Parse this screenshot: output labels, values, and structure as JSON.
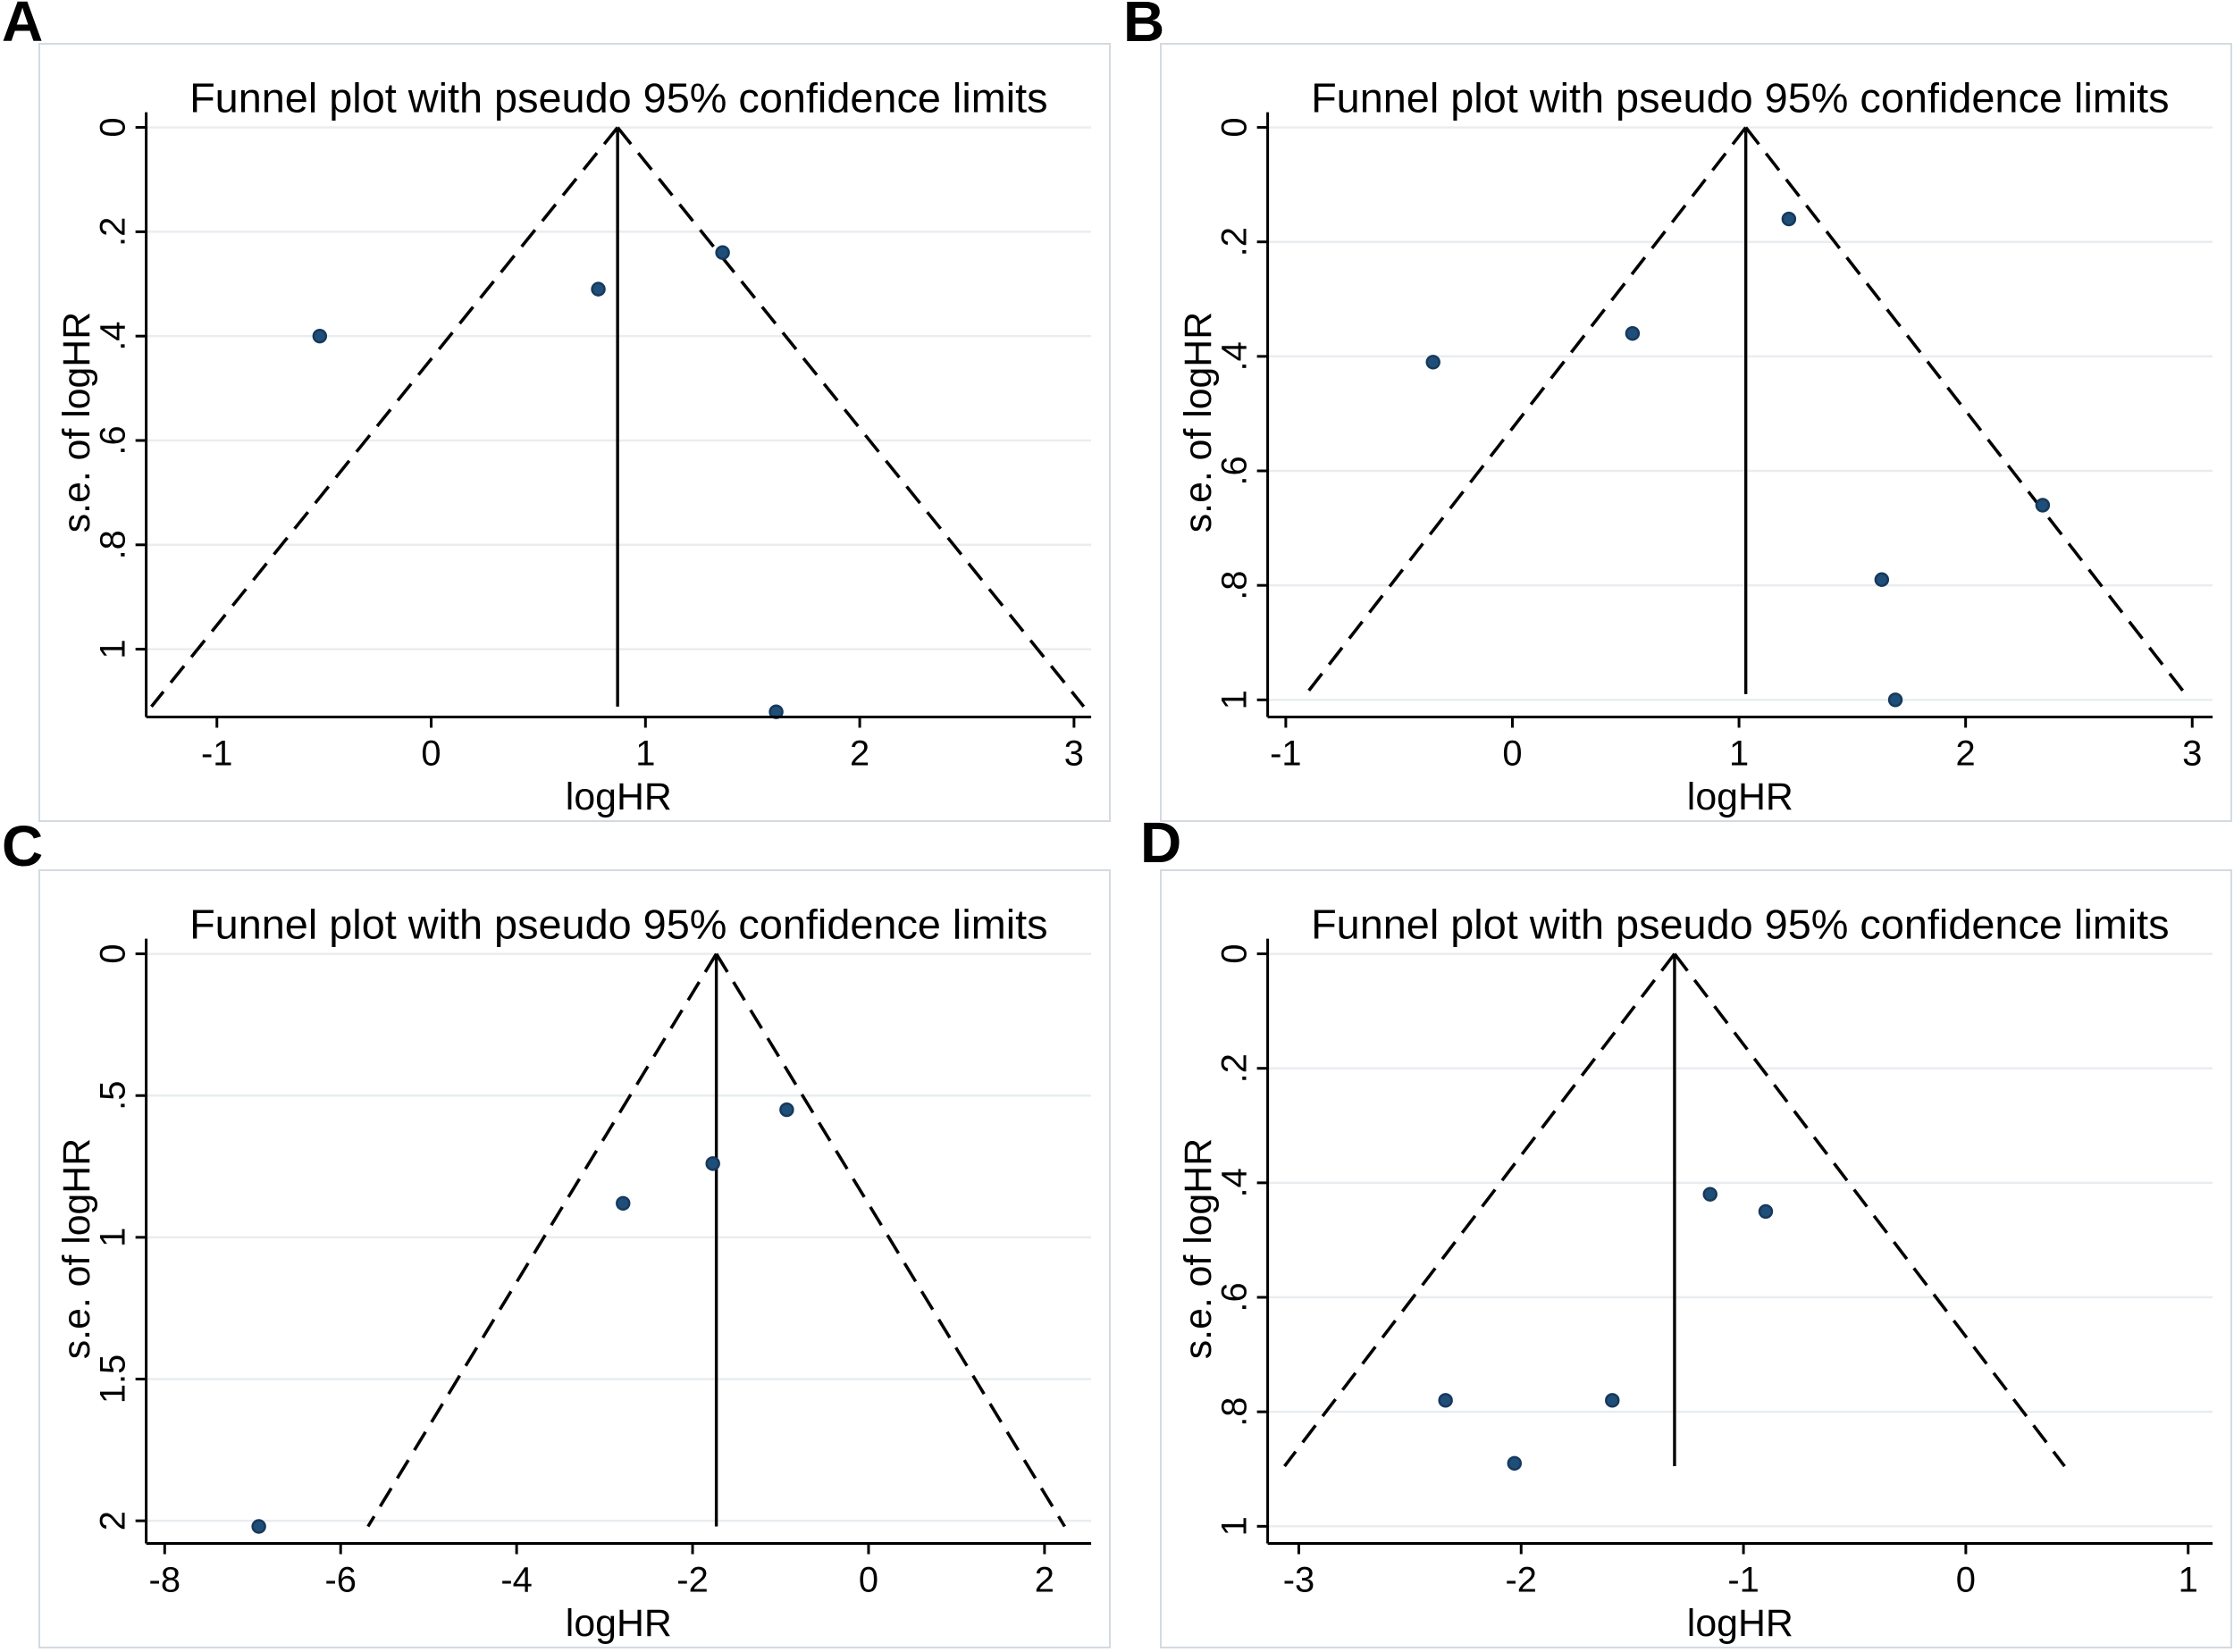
{
  "style": {
    "point_fill": "#1f4e79",
    "point_stroke": "#16395c",
    "grid_color": "#e9edf0",
    "axis_color": "#000000",
    "text_color": "#000000",
    "card_border": "#d3dae1",
    "background": "#ffffff"
  },
  "chart_data": [
    {
      "type": "scatter",
      "subtype": "funnel-plot",
      "panel_label": "A",
      "title": "Funnel plot with pseudo 95% confidence limits",
      "xlabel": "logHR",
      "ylabel": "s.e. of logHR",
      "x_ticks": [
        -1,
        0,
        1,
        2,
        3
      ],
      "x_tick_labels": [
        "-1",
        "0",
        "1",
        "2",
        "3"
      ],
      "y_ticks": [
        0,
        0.2,
        0.4,
        0.6,
        0.8,
        1
      ],
      "y_tick_labels": [
        "0",
        ".2",
        ".4",
        ".6",
        ".8",
        "1"
      ],
      "x_domain": [
        -1.33,
        3.08
      ],
      "y_domain": [
        0,
        1.13
      ],
      "pooled_logHR": 0.87,
      "se_max": 1.11,
      "ci_multiplier": 1.96,
      "grid": true,
      "legend": false,
      "points": [
        {
          "logHR": -0.52,
          "se": 0.4
        },
        {
          "logHR": 0.78,
          "se": 0.31
        },
        {
          "logHR": 1.36,
          "se": 0.24
        },
        {
          "logHR": 1.61,
          "se": 1.12
        }
      ]
    },
    {
      "type": "scatter",
      "subtype": "funnel-plot",
      "panel_label": "B",
      "title": "Funnel plot with pseudo 95% confidence limits",
      "xlabel": "logHR",
      "ylabel": "s.e. of logHR",
      "x_ticks": [
        -1,
        0,
        1,
        2,
        3
      ],
      "x_tick_labels": [
        "-1",
        "0",
        "1",
        "2",
        "3"
      ],
      "y_ticks": [
        0,
        0.2,
        0.4,
        0.6,
        0.8,
        1
      ],
      "y_tick_labels": [
        "0",
        ".2",
        ".4",
        ".6",
        ".8",
        "1"
      ],
      "x_domain": [
        -1.08,
        3.09
      ],
      "y_domain": [
        0,
        1.03
      ],
      "pooled_logHR": 1.03,
      "se_max": 0.99,
      "ci_multiplier": 1.96,
      "grid": true,
      "legend": false,
      "points": [
        {
          "logHR": -0.35,
          "se": 0.41
        },
        {
          "logHR": 0.53,
          "se": 0.36
        },
        {
          "logHR": 1.22,
          "se": 0.16
        },
        {
          "logHR": 2.34,
          "se": 0.66
        },
        {
          "logHR": 1.63,
          "se": 0.79
        },
        {
          "logHR": 1.69,
          "se": 1.0
        }
      ]
    },
    {
      "type": "scatter",
      "subtype": "funnel-plot",
      "panel_label": "C",
      "title": "Funnel plot with pseudo 95% confidence limits",
      "xlabel": "logHR",
      "ylabel": "s.e. of logHR",
      "x_ticks": [
        -8,
        -6,
        -4,
        -2,
        0,
        2
      ],
      "x_tick_labels": [
        "-8",
        "-6",
        "-4",
        "-2",
        "0",
        "2"
      ],
      "y_ticks": [
        0,
        0.5,
        1,
        1.5,
        2
      ],
      "y_tick_labels": [
        "0",
        ".5",
        "1",
        "1.5",
        "2"
      ],
      "x_domain": [
        -8.21,
        2.53
      ],
      "y_domain": [
        0,
        2.08
      ],
      "pooled_logHR": -1.73,
      "se_max": 2.02,
      "ci_multiplier": 1.96,
      "grid": true,
      "legend": false,
      "points": [
        {
          "logHR": -6.93,
          "se": 2.02
        },
        {
          "logHR": -2.79,
          "se": 0.88
        },
        {
          "logHR": -1.77,
          "se": 0.74
        },
        {
          "logHR": -0.93,
          "se": 0.55
        }
      ]
    },
    {
      "type": "scatter",
      "subtype": "funnel-plot",
      "panel_label": "D",
      "title": "Funnel plot with pseudo 95% confidence limits",
      "xlabel": "logHR",
      "ylabel": "s.e. of logHR",
      "x_ticks": [
        -3,
        -2,
        -1,
        0,
        1
      ],
      "x_tick_labels": [
        "-3",
        "-2",
        "-1",
        "0",
        "1"
      ],
      "y_ticks": [
        0,
        0.2,
        0.4,
        0.6,
        0.8,
        1
      ],
      "y_tick_labels": [
        "0",
        ".2",
        ".4",
        ".6",
        ".8",
        "1"
      ],
      "x_domain": [
        -3.14,
        1.11
      ],
      "y_domain": [
        0,
        1.03
      ],
      "pooled_logHR": -1.31,
      "se_max": 0.895,
      "ci_multiplier": 1.96,
      "grid": true,
      "legend": false,
      "points": [
        {
          "logHR": -1.15,
          "se": 0.42
        },
        {
          "logHR": -0.9,
          "se": 0.45
        },
        {
          "logHR": -2.34,
          "se": 0.78
        },
        {
          "logHR": -1.59,
          "se": 0.78
        },
        {
          "logHR": -2.03,
          "se": 0.89
        }
      ]
    }
  ]
}
